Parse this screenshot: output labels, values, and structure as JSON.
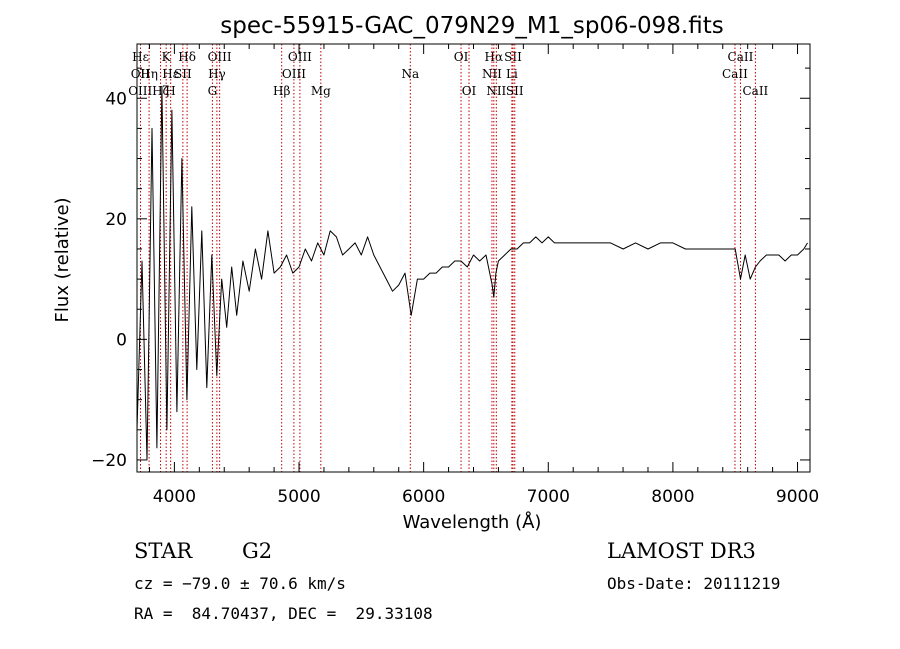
{
  "colors": {
    "line_marker": "#c00000",
    "spectrum": "#000000"
  },
  "chart_data": {
    "type": "line",
    "title": "spec-55915-GAC_079N29_M1_sp06-098.fits",
    "xlabel": "Wavelength (Å)",
    "ylabel": "Flux (relative)",
    "xlim": [
      3700,
      9100
    ],
    "ylim": [
      -22,
      49
    ],
    "x_ticks": [
      4000,
      5000,
      6000,
      7000,
      8000,
      9000
    ],
    "y_ticks": [
      -20,
      0,
      20,
      40
    ],
    "series": [
      {
        "name": "flux",
        "x": [
          3700,
          3740,
          3780,
          3820,
          3860,
          3900,
          3940,
          3980,
          4020,
          4060,
          4100,
          4140,
          4180,
          4220,
          4260,
          4300,
          4340,
          4380,
          4420,
          4460,
          4500,
          4550,
          4600,
          4650,
          4700,
          4750,
          4800,
          4850,
          4900,
          4950,
          5000,
          5050,
          5100,
          5150,
          5200,
          5250,
          5300,
          5350,
          5400,
          5450,
          5500,
          5550,
          5600,
          5650,
          5700,
          5750,
          5800,
          5850,
          5900,
          5950,
          6000,
          6050,
          6100,
          6150,
          6200,
          6250,
          6300,
          6350,
          6400,
          6450,
          6500,
          6550,
          6563,
          6580,
          6600,
          6650,
          6700,
          6750,
          6800,
          6850,
          6900,
          6950,
          7000,
          7050,
          7100,
          7150,
          7200,
          7300,
          7400,
          7500,
          7600,
          7700,
          7800,
          7900,
          8000,
          8100,
          8200,
          8300,
          8400,
          8500,
          8542,
          8580,
          8620,
          8662,
          8700,
          8750,
          8800,
          8850,
          8900,
          8950,
          9000,
          9050,
          9080
        ],
        "y": [
          -15,
          13,
          -20,
          35,
          -18,
          42,
          -15,
          38,
          -12,
          30,
          -10,
          22,
          -5,
          18,
          -8,
          14,
          -6,
          10,
          2,
          12,
          4,
          13,
          8,
          15,
          10,
          18,
          11,
          12,
          14,
          11,
          12,
          15,
          13,
          16,
          14,
          18,
          17,
          14,
          15,
          16,
          14,
          17,
          14,
          12,
          10,
          8,
          9,
          11,
          4,
          10,
          10,
          11,
          11,
          12,
          12,
          13,
          13,
          12,
          14,
          13,
          14,
          9,
          7,
          11,
          13,
          14,
          15,
          15,
          16,
          16,
          17,
          16,
          17,
          16,
          16,
          16,
          16,
          16,
          16,
          16,
          15,
          16,
          15,
          16,
          16,
          15,
          15,
          15,
          15,
          15,
          10,
          14,
          10,
          12,
          13,
          14,
          14,
          14,
          13,
          14,
          14,
          15,
          16
        ]
      }
    ],
    "spectral_lines": [
      {
        "label": "Hε",
        "x": 3728,
        "row": 0
      },
      {
        "label": "OII",
        "x": 3727,
        "row": 1
      },
      {
        "label": "OIII",
        "x": 3726,
        "row": 2
      },
      {
        "label": "Hη",
        "x": 3797,
        "row": 1
      },
      {
        "label": "Hζ",
        "x": 3889,
        "row": 2
      },
      {
        "label": "K",
        "x": 3934,
        "row": 0
      },
      {
        "label": "Hε",
        "x": 3970,
        "row": 1
      },
      {
        "label": "H",
        "x": 3969,
        "row": 2
      },
      {
        "label": "SII",
        "x": 4068,
        "row": 1
      },
      {
        "label": "Hδ",
        "x": 4102,
        "row": 0
      },
      {
        "label": "OIII",
        "x": 4363,
        "row": 0
      },
      {
        "label": "Hγ",
        "x": 4341,
        "row": 1
      },
      {
        "label": "G",
        "x": 4305,
        "row": 2
      },
      {
        "label": "Hβ",
        "x": 4861,
        "row": 2
      },
      {
        "label": "OIII",
        "x": 5007,
        "row": 0
      },
      {
        "label": "OIII",
        "x": 4959,
        "row": 1
      },
      {
        "label": "Mg",
        "x": 5175,
        "row": 2
      },
      {
        "label": "Na",
        "x": 5893,
        "row": 1
      },
      {
        "label": "OI",
        "x": 6300,
        "row": 0
      },
      {
        "label": "OI",
        "x": 6364,
        "row": 2
      },
      {
        "label": "Hα",
        "x": 6563,
        "row": 0
      },
      {
        "label": "NII",
        "x": 6548,
        "row": 1
      },
      {
        "label": "NII",
        "x": 6583,
        "row": 2
      },
      {
        "label": "SII",
        "x": 6717,
        "row": 0
      },
      {
        "label": "Li",
        "x": 6708,
        "row": 1
      },
      {
        "label": "SII",
        "x": 6731,
        "row": 2
      },
      {
        "label": "CaII",
        "x": 8542,
        "row": 0
      },
      {
        "label": "CaII",
        "x": 8498,
        "row": 1
      },
      {
        "label": "CaII",
        "x": 8662,
        "row": 2
      }
    ]
  },
  "info": {
    "class": "STAR",
    "subclass": "G2",
    "survey": "LAMOST DR3",
    "cz": "cz = −79.0 ± 70.6 km/s",
    "obs_date": "Obs-Date: 20111219",
    "coords": "RA =  84.70437, DEC =  29.33108"
  }
}
